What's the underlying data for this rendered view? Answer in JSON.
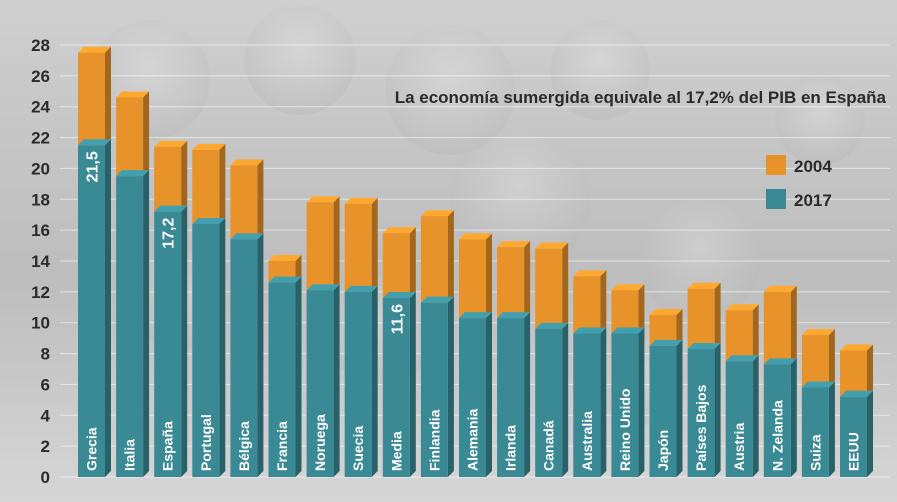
{
  "chart_data": {
    "type": "bar",
    "title": "La economía sumergida equivale al 17,2% del PIB en España",
    "categories": [
      "Grecia",
      "Italia",
      "España",
      "Portugal",
      "Bélgica",
      "Francia",
      "Noruega",
      "Suecia",
      "Media",
      "Finlandia",
      "Alemania",
      "Irlanda",
      "Canadá",
      "Australia",
      "Reino Unido",
      "Japón",
      "Países Bajos",
      "Austria",
      "N. Zelanda",
      "Suiza",
      "EEUU"
    ],
    "series": [
      {
        "name": "2004",
        "color": "#e8922a",
        "values": [
          27.5,
          24.6,
          21.4,
          21.2,
          20.2,
          14.0,
          17.8,
          17.7,
          15.8,
          16.9,
          15.4,
          14.9,
          14.8,
          13.0,
          12.1,
          10.5,
          12.2,
          10.8,
          12.0,
          9.2,
          8.2
        ]
      },
      {
        "name": "2017",
        "color": "#3a8a96",
        "values": [
          21.5,
          19.5,
          17.2,
          16.4,
          15.4,
          12.6,
          12.1,
          12.0,
          11.6,
          11.3,
          10.3,
          10.3,
          9.6,
          9.3,
          9.3,
          8.5,
          8.3,
          7.5,
          7.3,
          5.8,
          5.2
        ]
      }
    ],
    "data_labels": [
      {
        "category": "Grecia",
        "text": "21,5"
      },
      {
        "category": "España",
        "text": "17,2"
      },
      {
        "category": "Media",
        "text": "11,6"
      }
    ],
    "yticks": [
      "0",
      "2",
      "4",
      "6",
      "8",
      "10",
      "12",
      "14",
      "16",
      "18",
      "20",
      "22",
      "24",
      "26",
      "28"
    ],
    "ylim": [
      0,
      28
    ],
    "legend_position": "right",
    "grid": true
  }
}
